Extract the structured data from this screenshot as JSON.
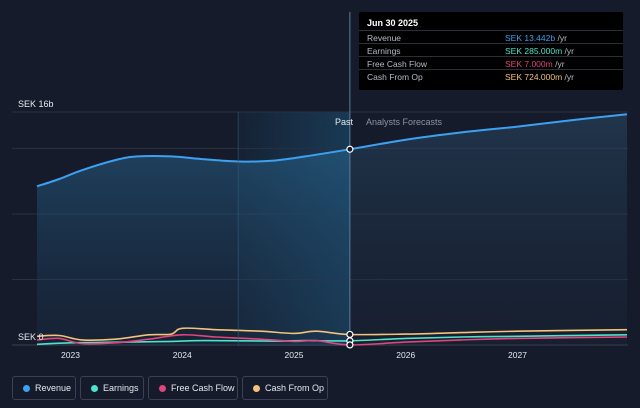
{
  "chart_data": {
    "type": "line",
    "currency": "SEK",
    "y_top_label": "SEK 16b",
    "y_zero_label": "SEK 0",
    "ylim": [
      0,
      16
    ],
    "x_ticks": [
      "2023",
      "2024",
      "2025",
      "2026",
      "2027"
    ],
    "section_past": "Past",
    "section_forecast": "Analysts Forecasts",
    "split_date": 2025.5,
    "highlight_range": [
      2024.5,
      2025.5
    ],
    "series": [
      {
        "name": "Revenue",
        "color": "#3da0f0",
        "fill": true,
        "points": [
          [
            2022.7,
            10.9
          ],
          [
            2022.9,
            11.4
          ],
          [
            2023.1,
            12.0
          ],
          [
            2023.4,
            12.7
          ],
          [
            2023.6,
            12.95
          ],
          [
            2023.9,
            12.95
          ],
          [
            2024.2,
            12.75
          ],
          [
            2024.5,
            12.6
          ],
          [
            2024.8,
            12.65
          ],
          [
            2025.1,
            12.95
          ],
          [
            2025.5,
            13.442
          ],
          [
            2026.0,
            14.1
          ],
          [
            2026.5,
            14.6
          ],
          [
            2027.0,
            15.0
          ],
          [
            2027.5,
            15.45
          ],
          [
            2027.98,
            15.85
          ]
        ]
      },
      {
        "name": "Earnings",
        "color": "#4de2cc",
        "fill": false,
        "points": [
          [
            2022.7,
            0.05
          ],
          [
            2023.0,
            0.15
          ],
          [
            2023.5,
            0.2
          ],
          [
            2023.9,
            0.25
          ],
          [
            2024.2,
            0.3
          ],
          [
            2024.8,
            0.27
          ],
          [
            2025.1,
            0.3
          ],
          [
            2025.5,
            0.285
          ],
          [
            2026.0,
            0.45
          ],
          [
            2026.5,
            0.55
          ],
          [
            2027.0,
            0.6
          ],
          [
            2027.98,
            0.7
          ]
        ]
      },
      {
        "name": "Free Cash Flow",
        "color": "#e0457b",
        "fill": false,
        "points": [
          [
            2022.7,
            0.35
          ],
          [
            2022.9,
            0.45
          ],
          [
            2023.1,
            0.1
          ],
          [
            2023.4,
            0.15
          ],
          [
            2023.7,
            0.4
          ],
          [
            2024.0,
            0.7
          ],
          [
            2024.3,
            0.55
          ],
          [
            2024.7,
            0.4
          ],
          [
            2025.0,
            0.25
          ],
          [
            2025.2,
            0.3
          ],
          [
            2025.5,
            0.007
          ],
          [
            2026.0,
            0.2
          ],
          [
            2026.5,
            0.35
          ],
          [
            2027.0,
            0.45
          ],
          [
            2027.98,
            0.55
          ]
        ]
      },
      {
        "name": "Cash From Op",
        "color": "#f2c37a",
        "fill": false,
        "points": [
          [
            2022.7,
            0.6
          ],
          [
            2022.9,
            0.65
          ],
          [
            2023.1,
            0.35
          ],
          [
            2023.4,
            0.4
          ],
          [
            2023.7,
            0.7
          ],
          [
            2023.9,
            0.75
          ],
          [
            2024.0,
            1.15
          ],
          [
            2024.3,
            1.05
          ],
          [
            2024.7,
            0.95
          ],
          [
            2025.0,
            0.8
          ],
          [
            2025.2,
            0.95
          ],
          [
            2025.5,
            0.724
          ],
          [
            2026.0,
            0.75
          ],
          [
            2026.5,
            0.85
          ],
          [
            2027.0,
            0.95
          ],
          [
            2027.98,
            1.05
          ]
        ]
      }
    ]
  },
  "tooltip": {
    "date": "Jun 30 2025",
    "rows": [
      {
        "label": "Revenue",
        "value": "SEK 13.442b",
        "unit": " /yr",
        "color": "#3da0f0"
      },
      {
        "label": "Earnings",
        "value": "SEK 285.000m",
        "unit": " /yr",
        "color": "#4de2cc"
      },
      {
        "label": "Free Cash Flow",
        "value": "SEK 7.000m",
        "unit": " /yr",
        "color": "#e0457b"
      },
      {
        "label": "Cash From Op",
        "value": "SEK 724.000m",
        "unit": " /yr",
        "color": "#f2c37a"
      }
    ]
  },
  "legend": [
    {
      "label": "Revenue",
      "color": "#3da0f0"
    },
    {
      "label": "Earnings",
      "color": "#4de2cc"
    },
    {
      "label": "Free Cash Flow",
      "color": "#e0457b"
    },
    {
      "label": "Cash From Op",
      "color": "#f2c37a"
    }
  ]
}
